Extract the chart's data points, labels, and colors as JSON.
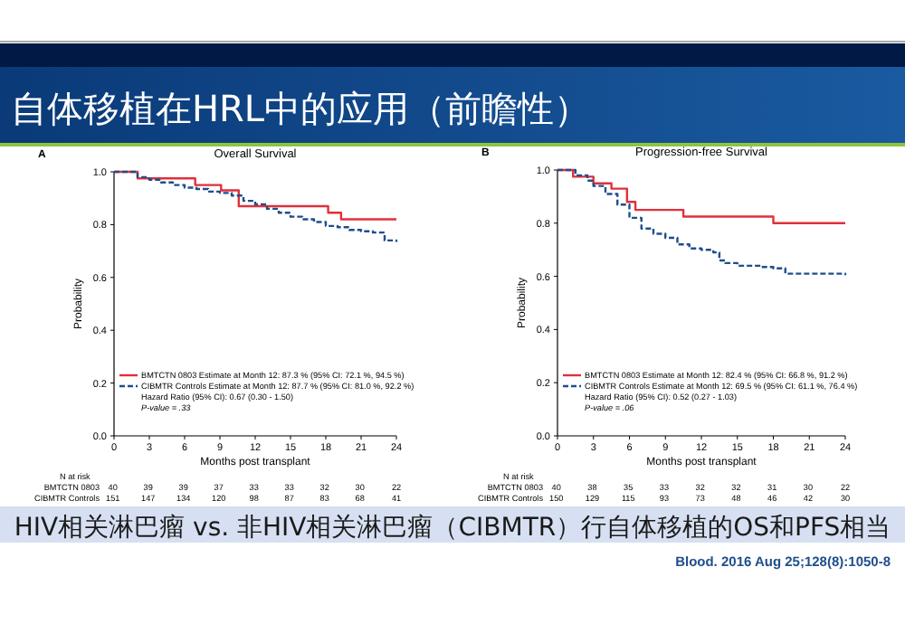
{
  "chart_data": [
    {
      "type": "step",
      "title": "Overall Survival",
      "xlabel": "Months post transplant",
      "ylabel": "Probability",
      "xlim": [
        0,
        24
      ],
      "ylim": [
        0,
        1
      ],
      "xticks": [
        0,
        3,
        6,
        9,
        12,
        15,
        18,
        21,
        24
      ],
      "yticks": [
        {
          "value": 0,
          "label": "0.0"
        },
        {
          "value": 0.2,
          "label": "0.2"
        },
        {
          "value": 0.4,
          "label": "0.4"
        },
        {
          "value": 0.6,
          "label": "0.6"
        },
        {
          "value": 0.8,
          "label": "0.8"
        },
        {
          "value": 1,
          "label": "1.0"
        }
      ],
      "grid": false,
      "legend": "bottom left",
      "series": [
        {
          "name": "BMTCTN 0803 Estimate at Month 12: 87.3 % (95% CI: 72.1 %, 94.5 %)",
          "color": "#e0303a",
          "line_style": "solid",
          "x": [
            0,
            2,
            6.9,
            9.1,
            10.6,
            18.2,
            19.3,
            24
          ],
          "values": [
            1,
            0.975,
            0.95,
            0.93,
            0.87,
            0.845,
            0.82,
            0.82
          ]
        },
        {
          "name": "CIBMTR Controls Estimate at Month 12: 87.7 % (95% CI: 81.0 %, 92.2 %)",
          "color": "#1f4e8c",
          "line_style": "dashed",
          "x": [
            0,
            2,
            3,
            4,
            5,
            6,
            7,
            8,
            9,
            10,
            11,
            12,
            13,
            14,
            15,
            16,
            17,
            18,
            19,
            20,
            21,
            22,
            23,
            24
          ],
          "values": [
            1,
            0.98,
            0.97,
            0.96,
            0.95,
            0.94,
            0.935,
            0.925,
            0.92,
            0.91,
            0.89,
            0.877,
            0.86,
            0.845,
            0.83,
            0.82,
            0.81,
            0.795,
            0.79,
            0.78,
            0.775,
            0.77,
            0.74,
            0.735
          ]
        }
      ],
      "annotations": [
        "A",
        "Hazard Ratio (95% CI): 0.67 (0.30 - 1.50)",
        "P-value = .33",
        "N at risk",
        "BMTCTN 0803",
        "CIBMTR Controls",
        "40 39 39 37 33 33 32 30 22",
        "151 147 134 120 98 87 83 68 41"
      ]
    },
    {
      "type": "step",
      "title": "Progression-free Survival",
      "xlabel": "Months post transplant",
      "ylabel": "Probability",
      "xlim": [
        0,
        24
      ],
      "ylim": [
        0,
        1
      ],
      "xticks": [
        0,
        3,
        6,
        9,
        12,
        15,
        18,
        21,
        24
      ],
      "yticks": [
        {
          "value": 0,
          "label": "0.0"
        },
        {
          "value": 0.2,
          "label": "0.2"
        },
        {
          "value": 0.4,
          "label": "0.4"
        },
        {
          "value": 0.6,
          "label": "0.6"
        },
        {
          "value": 0.8,
          "label": "0.8"
        },
        {
          "value": 1,
          "label": "1.0"
        }
      ],
      "grid": false,
      "legend": "bottom left",
      "series": [
        {
          "name": "BMTCTN 0803 Estimate at Month 12: 82.4 % (95% CI: 66.8 %, 91.2 %)",
          "color": "#e0303a",
          "line_style": "solid",
          "x": [
            0,
            1.3,
            3,
            4.5,
            5.8,
            6.5,
            10.5,
            18,
            24
          ],
          "values": [
            1,
            0.975,
            0.95,
            0.93,
            0.88,
            0.85,
            0.825,
            0.8,
            0.8
          ]
        },
        {
          "name": "CIBMTR Controls Estimate at Month 12: 69.5 % (95% CI: 61.1 %, 76.4 %)",
          "color": "#1f4e8c",
          "line_style": "dashed",
          "x": [
            0,
            1.5,
            2.5,
            3,
            4,
            5,
            6,
            7,
            8,
            9,
            10,
            11,
            12,
            13,
            13.5,
            14,
            15,
            17,
            18,
            19,
            24
          ],
          "values": [
            1,
            0.98,
            0.96,
            0.94,
            0.91,
            0.87,
            0.82,
            0.78,
            0.76,
            0.745,
            0.72,
            0.705,
            0.7,
            0.69,
            0.66,
            0.65,
            0.64,
            0.635,
            0.63,
            0.61,
            0.605
          ]
        }
      ],
      "annotations": [
        "B",
        "Hazard Ratio (95% CI): 0.52 (0.27 - 1.03)",
        "P-value = .06",
        "N at risk",
        "BMTCTN 0803",
        "CIBMTR Controls",
        "40 38 35 33 32 32 31 30 22",
        "150 129 115 93 73 48 46 42 30"
      ]
    },
    {
      "type": "other",
      "title": "自体移植在HRL中的应用（前瞻性）",
      "annotations": [
        "HIV相关淋巴瘤 vs. 非HIV相关淋巴瘤（CIBMTR）行自体移植的OS和PFS相当",
        "Blood. 2016 Aug 25;128(8):1050-8"
      ]
    }
  ]
}
